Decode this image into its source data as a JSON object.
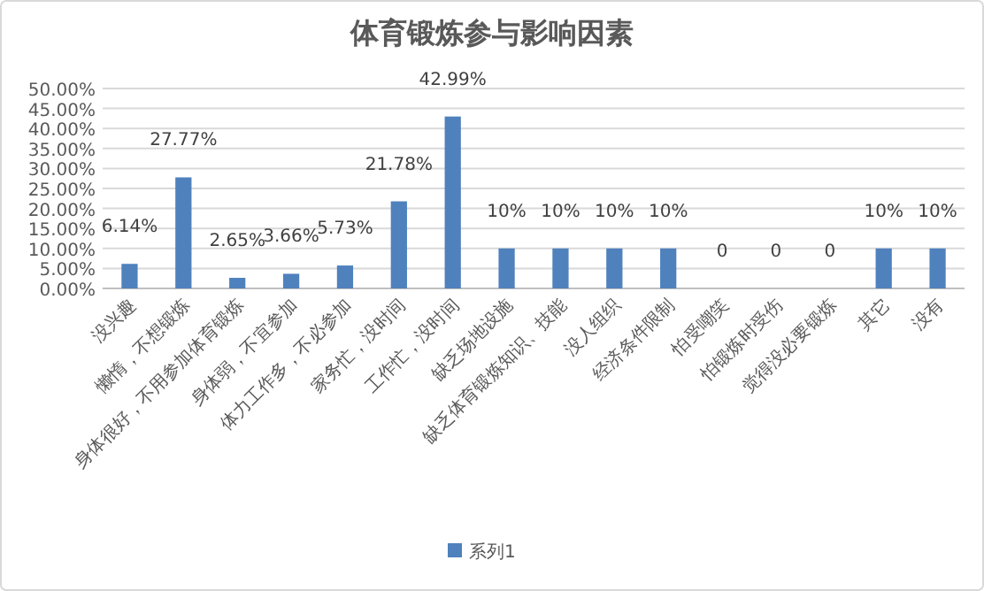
{
  "chart_data": {
    "type": "bar",
    "title": "体育锻炼参与影响因素",
    "categories": [
      "没兴趣",
      "懒惰，不想锻炼",
      "身体很好，不用参加体育锻炼",
      "身体弱，不宜参加",
      "体力工作多，不必参加",
      "家务忙，没时间",
      "工作忙，没时间",
      "缺乏场地设施",
      "缺乏体育锻炼知识、技能",
      "没人组织",
      "经济条件限制",
      "怕受嘲笑",
      "怕锻炼时受伤",
      "觉得没必要锻炼",
      "其它",
      "没有"
    ],
    "series": [
      {
        "name": "系列1",
        "color": "#4f81bd",
        "values": [
          6.14,
          27.77,
          2.65,
          3.66,
          5.73,
          21.78,
          42.99,
          10,
          10,
          10,
          10,
          0,
          0,
          0,
          10,
          10
        ],
        "value_labels": [
          "6.14%",
          "27.77%",
          "2.65%",
          "3.66%",
          "5.73%",
          "21.78%",
          "42.99%",
          "10%",
          "10%",
          "10%",
          "10%",
          "0",
          "0",
          "0",
          "10%",
          "10%"
        ]
      }
    ],
    "ylim": [
      0,
      50
    ],
    "yticks": [
      {
        "value": 0,
        "label": "0.00%"
      },
      {
        "value": 5,
        "label": "5.00%"
      },
      {
        "value": 10,
        "label": "10.00%"
      },
      {
        "value": 15,
        "label": "15.00%"
      },
      {
        "value": 20,
        "label": "20.00%"
      },
      {
        "value": 25,
        "label": "25.00%"
      },
      {
        "value": 30,
        "label": "30.00%"
      },
      {
        "value": 35,
        "label": "35.00%"
      },
      {
        "value": 40,
        "label": "40.00%"
      },
      {
        "value": 45,
        "label": "45.00%"
      },
      {
        "value": 50,
        "label": "50.00%"
      }
    ],
    "grid": "y",
    "legend": "bottom"
  }
}
